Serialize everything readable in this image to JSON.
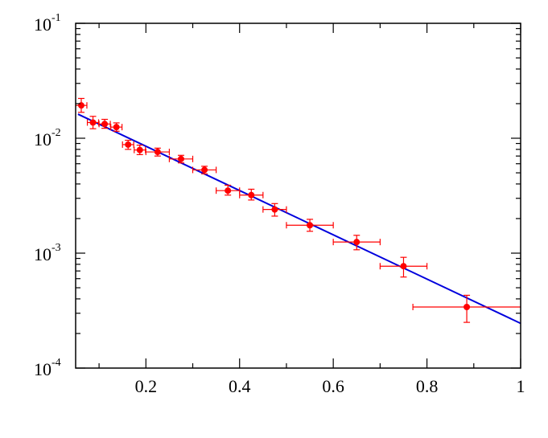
{
  "chart_data": {
    "type": "scatter",
    "title": "",
    "xlabel": "",
    "ylabel": "",
    "xlim": [
      0.05,
      1.0
    ],
    "ylim": [
      0.0001,
      0.1
    ],
    "yscale": "log",
    "grid": false,
    "x_ticks": [
      0.2,
      0.4,
      0.6,
      0.8,
      1.0
    ],
    "x_tick_labels": [
      "0.2",
      "0.4",
      "0.6",
      "0.8",
      "1"
    ],
    "y_ticks": [
      0.0001,
      0.001,
      0.01,
      0.1
    ],
    "y_tick_labels": [
      {
        "base": "10",
        "exp": "-4"
      },
      {
        "base": "10",
        "exp": "-3"
      },
      {
        "base": "10",
        "exp": "-2"
      },
      {
        "base": "10",
        "exp": "-1"
      }
    ],
    "colors": {
      "points": "#ff0000",
      "fit": "#0000dd",
      "axes": "#000000"
    },
    "series": [
      {
        "kind": "points-with-errors",
        "points": [
          {
            "x": 0.062,
            "y": 0.0193,
            "xerr": 0.012,
            "ylo": 0.0168,
            "yhi": 0.0222
          },
          {
            "x": 0.087,
            "y": 0.0137,
            "xerr": 0.012,
            "ylo": 0.0121,
            "yhi": 0.0155
          },
          {
            "x": 0.112,
            "y": 0.0133,
            "xerr": 0.012,
            "ylo": 0.0122,
            "yhi": 0.0146
          },
          {
            "x": 0.137,
            "y": 0.0125,
            "xerr": 0.012,
            "ylo": 0.0115,
            "yhi": 0.0136
          },
          {
            "x": 0.162,
            "y": 0.0088,
            "xerr": 0.012,
            "ylo": 0.008,
            "yhi": 0.0096
          },
          {
            "x": 0.187,
            "y": 0.0079,
            "xerr": 0.012,
            "ylo": 0.0072,
            "yhi": 0.0087
          },
          {
            "x": 0.225,
            "y": 0.0076,
            "xerr": 0.025,
            "ylo": 0.007,
            "yhi": 0.0082
          },
          {
            "x": 0.275,
            "y": 0.0066,
            "xerr": 0.025,
            "ylo": 0.0061,
            "yhi": 0.0071
          },
          {
            "x": 0.325,
            "y": 0.0053,
            "xerr": 0.025,
            "ylo": 0.0049,
            "yhi": 0.0057
          },
          {
            "x": 0.375,
            "y": 0.0035,
            "xerr": 0.025,
            "ylo": 0.0032,
            "yhi": 0.0039
          },
          {
            "x": 0.425,
            "y": 0.0032,
            "xerr": 0.025,
            "ylo": 0.0029,
            "yhi": 0.0036
          },
          {
            "x": 0.475,
            "y": 0.0024,
            "xerr": 0.025,
            "ylo": 0.0021,
            "yhi": 0.0027
          },
          {
            "x": 0.55,
            "y": 0.00175,
            "xerr": 0.05,
            "ylo": 0.00155,
            "yhi": 0.00197
          },
          {
            "x": 0.65,
            "y": 0.00125,
            "xerr": 0.05,
            "ylo": 0.00107,
            "yhi": 0.00143
          },
          {
            "x": 0.75,
            "y": 0.00077,
            "xerr": 0.05,
            "ylo": 0.00062,
            "yhi": 0.00092
          },
          {
            "x": 0.885,
            "y": 0.00034,
            "xerr": 0.115,
            "ylo": 0.00025,
            "yhi": 0.00043
          }
        ]
      },
      {
        "kind": "fit-line",
        "x": [
          0.055,
          1.0
        ],
        "y": [
          0.0162,
          0.000245
        ]
      }
    ]
  }
}
